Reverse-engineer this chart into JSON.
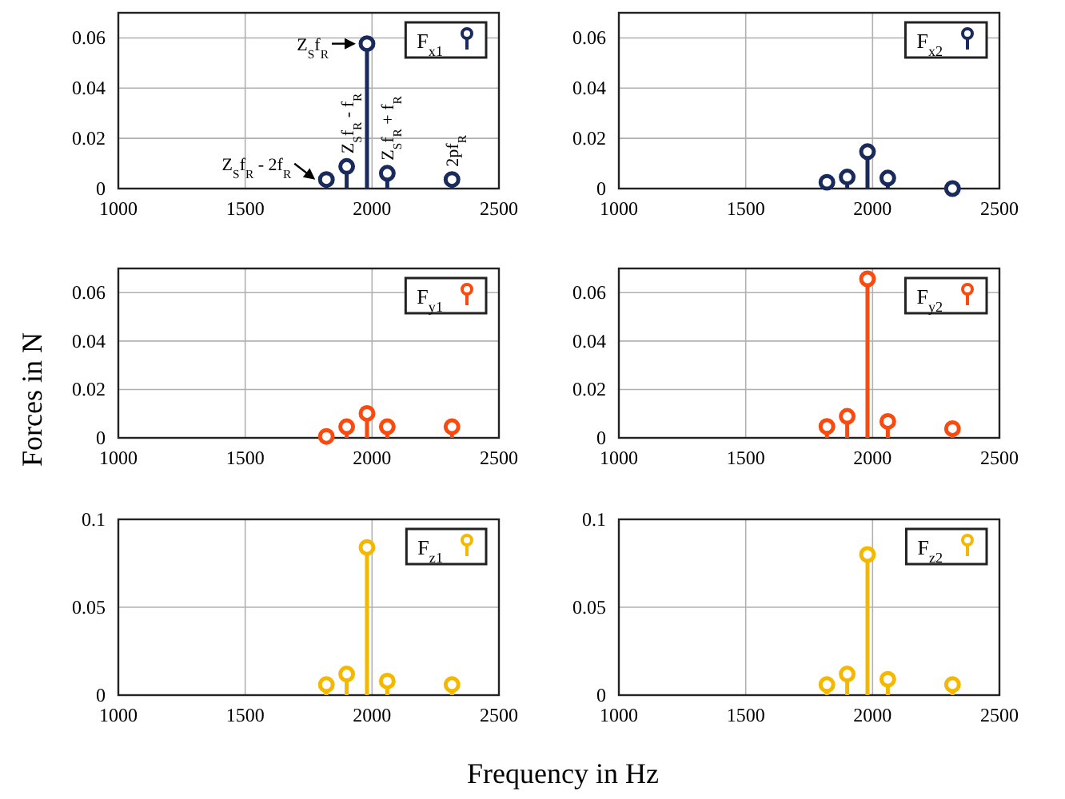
{
  "chart_data": [
    {
      "type": "lollipop",
      "x": [
        1820,
        1900,
        1980,
        2060,
        2315
      ],
      "series": [
        {
          "name": "F$_{x1}$",
          "color": "#1a2a5c",
          "values": [
            0.0036,
            0.0088,
            0.0577,
            0.0061,
            0.0036
          ]
        }
      ],
      "xlim": [
        1000,
        2500
      ],
      "xticks": [
        1000,
        1500,
        2000,
        2500
      ],
      "ylim": [
        0,
        0.07
      ],
      "yticks": [
        0,
        0.02,
        0.04,
        0.06
      ],
      "grid": true,
      "legend": "top right",
      "marker": "circle",
      "annotations": [
        {
          "text": "Z$_{S}$f$_{R}$",
          "x": 1980,
          "y": 0.0577
        },
        {
          "text": "Z$_{S}$f$_{R}$ - 2f$_{R}$",
          "x": 1820,
          "y": 0.0036
        },
        {
          "text": "Z$_{S}$f$_{R}$ - f$_{R}$",
          "x": 1900,
          "y": 0.0088
        },
        {
          "text": "Z$_{S}$f$_{R}$ + f$_{R}$",
          "x": 2060,
          "y": 0.0061
        },
        {
          "text": "2pf$_{R}$",
          "x": 2315,
          "y": 0.0036
        }
      ]
    },
    {
      "type": "lollipop",
      "x": [
        1820,
        1900,
        1980,
        2060,
        2315
      ],
      "series": [
        {
          "name": "F$_{x2}$",
          "color": "#1a2a5c",
          "values": [
            0.0025,
            0.0046,
            0.0147,
            0.0042,
            0.0
          ]
        }
      ],
      "xlim": [
        1000,
        2500
      ],
      "xticks": [
        1000,
        1500,
        2000,
        2500
      ],
      "ylim": [
        0,
        0.07
      ],
      "yticks": [
        0,
        0.02,
        0.04,
        0.06
      ],
      "grid": true,
      "legend": "top right",
      "marker": "circle"
    },
    {
      "type": "lollipop",
      "x": [
        1820,
        1900,
        1980,
        2060,
        2315
      ],
      "series": [
        {
          "name": "F$_{y1}$",
          "color": "#fc4a0e",
          "values": [
            0.0006,
            0.0046,
            0.0101,
            0.0046,
            0.0046
          ]
        }
      ],
      "xlim": [
        1000,
        2500
      ],
      "xticks": [
        1000,
        1500,
        2000,
        2500
      ],
      "ylim": [
        0,
        0.07
      ],
      "yticks": [
        0,
        0.02,
        0.04,
        0.06
      ],
      "grid": true,
      "legend": "top right",
      "marker": "circle",
      "ylabel": "Forces in N"
    },
    {
      "type": "lollipop",
      "x": [
        1820,
        1900,
        1980,
        2060,
        2315
      ],
      "series": [
        {
          "name": "F$_{y2}$",
          "color": "#fc4a0e",
          "values": [
            0.0047,
            0.0089,
            0.0657,
            0.0068,
            0.0038
          ]
        }
      ],
      "xlim": [
        1000,
        2500
      ],
      "xticks": [
        1000,
        1500,
        2000,
        2500
      ],
      "ylim": [
        0,
        0.07
      ],
      "yticks": [
        0,
        0.02,
        0.04,
        0.06
      ],
      "grid": true,
      "legend": "top right",
      "marker": "circle"
    },
    {
      "type": "lollipop",
      "x": [
        1820,
        1900,
        1980,
        2060,
        2315
      ],
      "series": [
        {
          "name": "F$_{z1}$",
          "color": "#f5b800",
          "values": [
            0.006,
            0.012,
            0.084,
            0.008,
            0.006
          ]
        }
      ],
      "xlim": [
        1000,
        2500
      ],
      "xticks": [
        1000,
        1500,
        2000,
        2500
      ],
      "ylim": [
        0,
        0.1
      ],
      "yticks": [
        0,
        0.05,
        0.1
      ],
      "grid": true,
      "legend": "top right",
      "marker": "circle",
      "xlabel": "Frequency in Hz"
    },
    {
      "type": "lollipop",
      "x": [
        1820,
        1900,
        1980,
        2060,
        2315
      ],
      "series": [
        {
          "name": "F$_{z2}$",
          "color": "#f5b800",
          "values": [
            0.006,
            0.012,
            0.08,
            0.009,
            0.006
          ]
        }
      ],
      "xlim": [
        1000,
        2500
      ],
      "xticks": [
        1000,
        1500,
        2000,
        2500
      ],
      "ylim": [
        0,
        0.1
      ],
      "yticks": [
        0,
        0.05,
        0.1
      ],
      "grid": true,
      "legend": "top right",
      "marker": "circle"
    }
  ]
}
